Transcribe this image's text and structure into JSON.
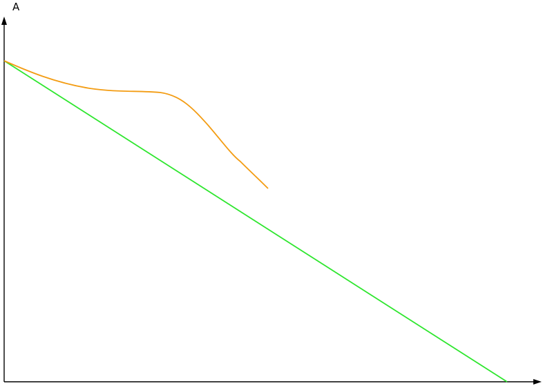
{
  "diagram": {
    "y_axis_label": "A",
    "colors": {
      "axes": "#000000",
      "orange_curve": "#f39c12",
      "green_line": "#2ee62e"
    }
  }
}
